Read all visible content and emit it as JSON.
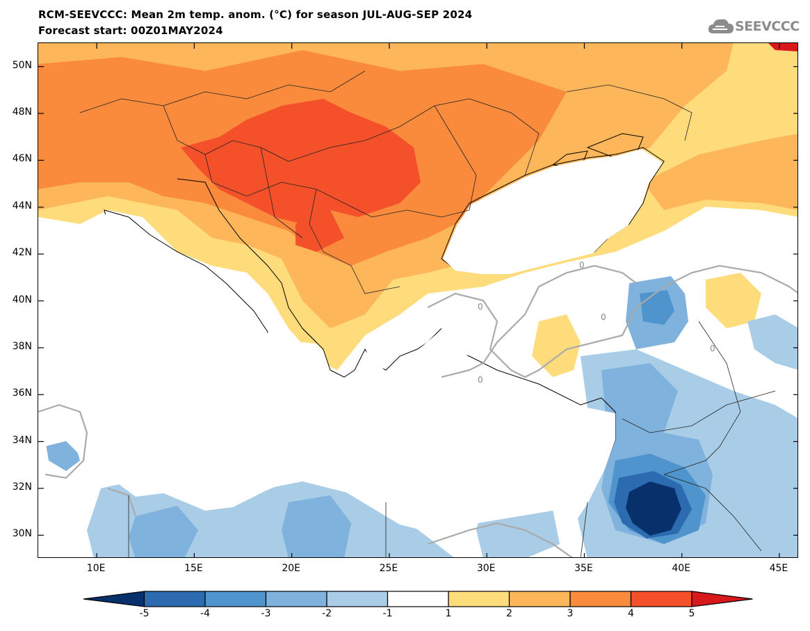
{
  "header": {
    "title": "RCM-SEEVCCC: Mean 2m temp. anom. (°C) for season JUL-AUG-SEP 2024",
    "subtitle": "Forecast start: 00Z01MAY2024"
  },
  "logo": {
    "text": "SEEVCCC",
    "icon": "cloud-icon"
  },
  "map": {
    "variable": "Mean 2m temperature anomaly",
    "units": "°C",
    "lon_range": [
      7,
      46
    ],
    "lat_range": [
      29,
      51
    ],
    "lat_ticks": [
      {
        "value": 50,
        "label": "50N"
      },
      {
        "value": 48,
        "label": "48N"
      },
      {
        "value": 46,
        "label": "46N"
      },
      {
        "value": 44,
        "label": "44N"
      },
      {
        "value": 42,
        "label": "42N"
      },
      {
        "value": 40,
        "label": "40N"
      },
      {
        "value": 38,
        "label": "38N"
      },
      {
        "value": 36,
        "label": "36N"
      },
      {
        "value": 34,
        "label": "34N"
      },
      {
        "value": 32,
        "label": "32N"
      },
      {
        "value": 30,
        "label": "30N"
      }
    ],
    "lon_ticks": [
      {
        "value": 10,
        "label": "10E"
      },
      {
        "value": 15,
        "label": "15E"
      },
      {
        "value": 20,
        "label": "20E"
      },
      {
        "value": 25,
        "label": "25E"
      },
      {
        "value": 30,
        "label": "30E"
      },
      {
        "value": 35,
        "label": "35E"
      },
      {
        "value": 40,
        "label": "40E"
      },
      {
        "value": 45,
        "label": "45E"
      }
    ],
    "zero_contour_label": "0"
  },
  "colorbar": {
    "levels": [
      "-5",
      "-4",
      "-3",
      "-2",
      "-1",
      "1",
      "2",
      "3",
      "4",
      "5"
    ],
    "colors": [
      "#08306b",
      "#2c6bb0",
      "#4f94cd",
      "#7fb2dc",
      "#a9cde6",
      "#ffffff",
      "#fedc7c",
      "#fdb65a",
      "#fa8a3c",
      "#f4502a",
      "#d7191c"
    ]
  }
}
